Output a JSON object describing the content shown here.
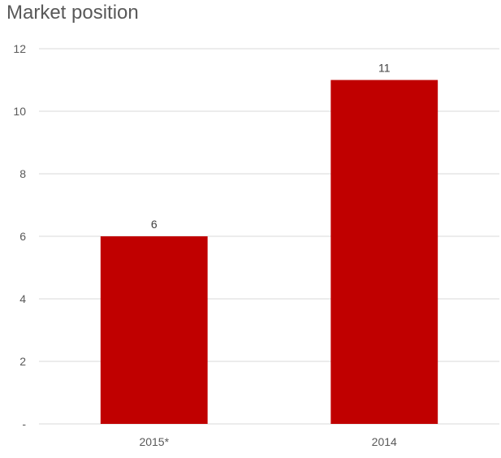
{
  "chart_data": {
    "type": "bar",
    "title": "Market position",
    "categories": [
      "2015*",
      "2014"
    ],
    "values": [
      6,
      11
    ],
    "data_labels": [
      "6",
      "11"
    ],
    "xlabel": "",
    "ylabel": "",
    "ylim": [
      0,
      12
    ],
    "y_ticks": [
      0,
      2,
      4,
      6,
      8,
      10,
      12
    ],
    "y_tick_labels": [
      "-",
      "2",
      "4",
      "6",
      "8",
      "10",
      "12"
    ],
    "grid": true,
    "legend": "none",
    "bar_color": "#c00000",
    "grid_color": "#d9d9d9"
  }
}
